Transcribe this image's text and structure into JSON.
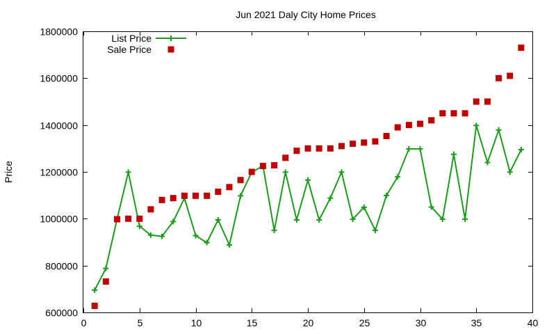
{
  "chart_data": {
    "type": "line",
    "title": "Jun 2021 Daly City Home Prices",
    "xlabel": "",
    "ylabel": "Price",
    "xlim": [
      0,
      40
    ],
    "ylim": [
      600000,
      1800000
    ],
    "x_ticks": [
      0,
      5,
      10,
      15,
      20,
      25,
      30,
      35,
      40
    ],
    "y_ticks": [
      600000,
      800000,
      1000000,
      1200000,
      1400000,
      1600000,
      1800000
    ],
    "grid": false,
    "legend_position": "top-left",
    "series": [
      {
        "name": "List Price",
        "style": "linespoints",
        "marker": "plus",
        "color": "#1a9c1a",
        "x": [
          1,
          2,
          3,
          4,
          5,
          6,
          7,
          8,
          9,
          10,
          11,
          12,
          13,
          14,
          15,
          16,
          17,
          18,
          19,
          20,
          21,
          22,
          23,
          24,
          25,
          26,
          27,
          28,
          29,
          30,
          31,
          32,
          33,
          34,
          35,
          36,
          37,
          38,
          39
        ],
        "y": [
          695000,
          788000,
          998000,
          1199000,
          968000,
          930000,
          925000,
          988000,
          1088000,
          928000,
          898000,
          995000,
          888000,
          1098000,
          1199000,
          1225000,
          950000,
          1199000,
          995000,
          1165000,
          995000,
          1088000,
          1199000,
          998000,
          1049000,
          950000,
          1099000,
          1179000,
          1298000,
          1298000,
          1050000,
          998000,
          1275000,
          998000,
          1398000,
          1240000,
          1379000,
          1199000,
          1295000
        ]
      },
      {
        "name": "Sale Price",
        "style": "points",
        "marker": "square",
        "color": "#c00000",
        "x": [
          1,
          2,
          3,
          4,
          5,
          6,
          7,
          8,
          9,
          10,
          11,
          12,
          13,
          14,
          15,
          16,
          17,
          18,
          19,
          20,
          21,
          22,
          23,
          24,
          25,
          26,
          27,
          28,
          29,
          30,
          31,
          32,
          33,
          34,
          35,
          36,
          37,
          38,
          39
        ],
        "y": [
          628000,
          732000,
          998000,
          1000000,
          1000000,
          1040000,
          1080000,
          1088000,
          1098000,
          1098000,
          1098000,
          1115000,
          1135000,
          1165000,
          1200000,
          1225000,
          1228000,
          1260000,
          1290000,
          1300000,
          1300000,
          1300000,
          1310000,
          1320000,
          1325000,
          1330000,
          1353000,
          1390000,
          1400000,
          1405000,
          1420000,
          1450000,
          1450000,
          1450000,
          1500000,
          1500000,
          1600000,
          1610000,
          1730000
        ]
      }
    ]
  }
}
